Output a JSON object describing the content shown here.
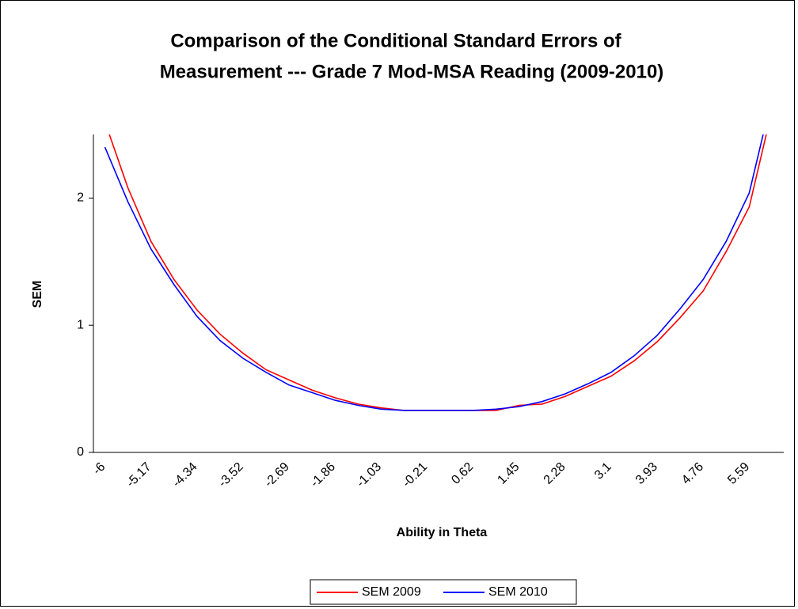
{
  "chart_data": {
    "type": "line",
    "title": [
      "Comparison of the Conditional Standard Errors of",
      "Measurement --- Grade 7 Mod-MSA Reading (2009-2010)"
    ],
    "x_label": "Ability in Theta",
    "y_label": "SEM",
    "categories": [
      -6,
      null,
      -5.17,
      null,
      -4.34,
      null,
      -3.52,
      null,
      -2.69,
      null,
      -1.86,
      null,
      -1.03,
      null,
      -0.21,
      null,
      0.62,
      null,
      1.45,
      null,
      2.28,
      null,
      3.1,
      null,
      3.93,
      null,
      4.76,
      null,
      5.59,
      null
    ],
    "series": [
      {
        "name": "SEM 2009",
        "color": "#ff0000",
        "values": [
          2.6,
          2.08,
          1.66,
          1.36,
          1.12,
          0.93,
          0.78,
          0.65,
          0.57,
          0.49,
          0.43,
          0.38,
          0.35,
          0.33,
          0.33,
          0.33,
          0.33,
          0.33,
          0.37,
          0.38,
          0.44,
          0.52,
          0.6,
          0.72,
          0.87,
          1.06,
          1.27,
          1.58,
          1.93,
          2.7
        ]
      },
      {
        "name": "SEM 2010",
        "color": "#0000ff",
        "values": [
          2.4,
          1.97,
          1.6,
          1.32,
          1.07,
          0.88,
          0.74,
          0.63,
          0.53,
          0.47,
          0.41,
          0.37,
          0.34,
          0.33,
          0.33,
          0.33,
          0.33,
          0.34,
          0.36,
          0.4,
          0.46,
          0.54,
          0.63,
          0.76,
          0.92,
          1.13,
          1.36,
          1.66,
          2.04,
          2.8
        ]
      }
    ],
    "ylim": [
      0,
      2.5
    ],
    "yticks": [
      0,
      1,
      2
    ],
    "legend": "bottom"
  }
}
